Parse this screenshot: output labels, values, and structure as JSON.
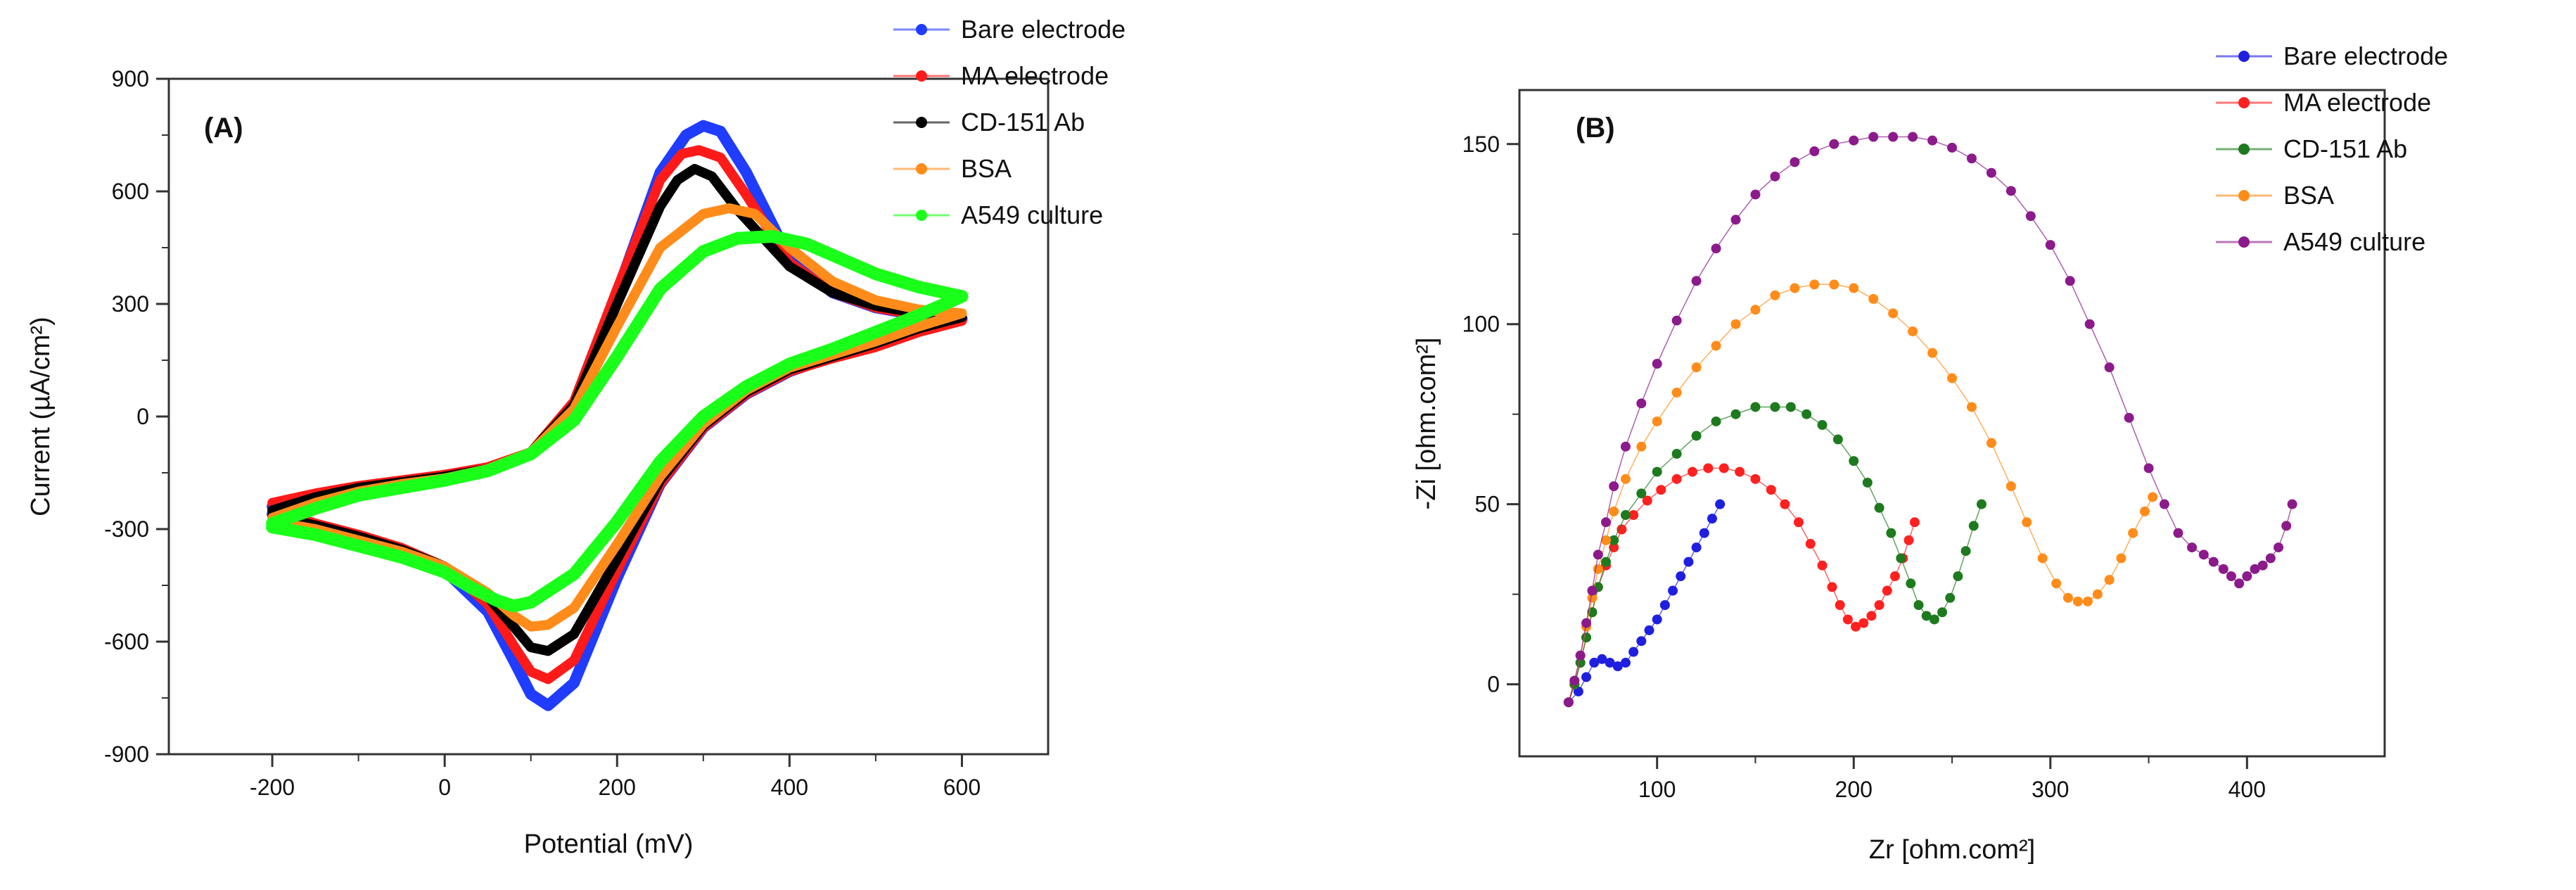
{
  "chart_data": [
    {
      "type": "line",
      "panel_label": "(A)",
      "title": "",
      "xlabel": "Potential (mV)",
      "ylabel": "Current (µA/cm²)",
      "xlim": [
        -320,
        700
      ],
      "ylim": [
        -900,
        900
      ],
      "xticks": [
        -200,
        0,
        200,
        400,
        600
      ],
      "yticks": [
        -900,
        -600,
        -300,
        0,
        300,
        600,
        900
      ],
      "xtick_labels": [
        "-200",
        "0",
        "200",
        "400",
        "600"
      ],
      "ytick_labels": [
        "-900",
        "-600",
        "-300",
        "0",
        "300",
        "600",
        "900"
      ],
      "grid": false,
      "legend_position": "top-right (outside)",
      "series": [
        {
          "name": "Bare electrode",
          "color": "#1f3cff",
          "line_width": 16,
          "x": [
            -200,
            -150,
            -100,
            -50,
            0,
            50,
            100,
            150,
            200,
            250,
            280,
            300,
            320,
            350,
            400,
            450,
            500,
            550,
            600,
            600,
            550,
            500,
            450,
            400,
            350,
            300,
            250,
            200,
            150,
            120,
            100,
            80,
            50,
            0,
            -50,
            -100,
            -150,
            -200
          ],
          "y": [
            -240,
            -210,
            -190,
            -175,
            -160,
            -140,
            -100,
            30,
            330,
            650,
            750,
            775,
            760,
            650,
            420,
            330,
            290,
            270,
            260,
            260,
            230,
            190,
            160,
            120,
            60,
            -30,
            -180,
            -430,
            -710,
            -770,
            -740,
            -650,
            -520,
            -410,
            -360,
            -320,
            -290,
            -260
          ]
        },
        {
          "name": "MA electrode",
          "color": "#ff1a1a",
          "line_width": 14,
          "x": [
            -200,
            -150,
            -100,
            -50,
            0,
            50,
            100,
            150,
            200,
            250,
            275,
            295,
            320,
            350,
            400,
            450,
            500,
            550,
            600,
            600,
            550,
            500,
            450,
            400,
            350,
            300,
            250,
            200,
            150,
            120,
            100,
            80,
            50,
            0,
            -50,
            -100,
            -150,
            -200
          ],
          "y": [
            -230,
            -205,
            -185,
            -170,
            -155,
            -135,
            -95,
            40,
            340,
            630,
            700,
            710,
            690,
            590,
            410,
            330,
            290,
            270,
            255,
            255,
            225,
            185,
            155,
            120,
            60,
            -30,
            -180,
            -410,
            -650,
            -700,
            -680,
            -610,
            -500,
            -400,
            -350,
            -315,
            -285,
            -250
          ]
        },
        {
          "name": "CD-151 Ab",
          "color": "#000000",
          "line_width": 14,
          "x": [
            -200,
            -150,
            -100,
            -50,
            0,
            50,
            100,
            150,
            200,
            250,
            270,
            290,
            310,
            340,
            400,
            450,
            500,
            550,
            600,
            600,
            550,
            500,
            450,
            400,
            350,
            300,
            250,
            200,
            150,
            120,
            100,
            80,
            50,
            0,
            -50,
            -100,
            -150,
            -200
          ],
          "y": [
            -250,
            -215,
            -190,
            -175,
            -160,
            -140,
            -95,
            30,
            300,
            560,
            630,
            660,
            640,
            550,
            400,
            330,
            295,
            275,
            265,
            265,
            235,
            195,
            160,
            125,
            65,
            -25,
            -170,
            -380,
            -580,
            -625,
            -615,
            -560,
            -480,
            -400,
            -355,
            -320,
            -290,
            -265
          ]
        },
        {
          "name": "BSA",
          "color": "#ff8c1a",
          "line_width": 14,
          "x": [
            -200,
            -150,
            -100,
            -50,
            0,
            50,
            100,
            150,
            200,
            250,
            300,
            330,
            360,
            400,
            450,
            500,
            550,
            600,
            600,
            550,
            500,
            450,
            400,
            350,
            300,
            250,
            200,
            150,
            120,
            100,
            80,
            50,
            0,
            -50,
            -100,
            -150,
            -200
          ],
          "y": [
            -270,
            -230,
            -200,
            -180,
            -165,
            -140,
            -95,
            20,
            240,
            450,
            540,
            555,
            540,
            450,
            360,
            310,
            285,
            275,
            275,
            240,
            200,
            165,
            130,
            70,
            -20,
            -160,
            -340,
            -510,
            -555,
            -560,
            -530,
            -470,
            -400,
            -360,
            -330,
            -300,
            -280
          ]
        },
        {
          "name": "A549 culture",
          "color": "#1aff1a",
          "line_width": 18,
          "x": [
            -200,
            -150,
            -100,
            -50,
            0,
            50,
            100,
            150,
            200,
            250,
            300,
            340,
            380,
            420,
            460,
            500,
            550,
            600,
            600,
            550,
            500,
            450,
            400,
            350,
            300,
            250,
            200,
            150,
            100,
            80,
            60,
            30,
            0,
            -50,
            -100,
            -150,
            -200
          ],
          "y": [
            -285,
            -245,
            -210,
            -190,
            -170,
            -145,
            -100,
            -10,
            160,
            340,
            440,
            475,
            480,
            460,
            420,
            380,
            345,
            320,
            320,
            270,
            225,
            180,
            140,
            80,
            0,
            -120,
            -280,
            -420,
            -495,
            -505,
            -490,
            -455,
            -415,
            -375,
            -345,
            -315,
            -295
          ]
        }
      ]
    },
    {
      "type": "scatter",
      "panel_label": "(B)",
      "title": "",
      "xlabel": "Zr [ohm.com²]",
      "ylabel": "-Zi [ohm.com²]",
      "xlim": [
        30,
        470
      ],
      "ylim": [
        -20,
        165
      ],
      "xticks": [
        100,
        200,
        300,
        400
      ],
      "yticks": [
        0,
        50,
        100,
        150
      ],
      "xtick_labels": [
        "100",
        "200",
        "300",
        "400"
      ],
      "ytick_labels": [
        "0",
        "50",
        "100",
        "150"
      ],
      "grid": false,
      "legend_position": "top-right (outside)",
      "series": [
        {
          "name": "Bare electrode",
          "color": "#1f1fe0",
          "x": [
            55,
            60,
            64,
            68,
            72,
            76,
            80,
            84,
            88,
            92,
            96,
            100,
            104,
            108,
            112,
            116,
            120,
            124,
            128,
            132
          ],
          "y": [
            -5,
            -2,
            2,
            6,
            7,
            6,
            5,
            6,
            9,
            12,
            15,
            18,
            22,
            26,
            30,
            34,
            38,
            42,
            46,
            50
          ]
        },
        {
          "name": "MA electrode",
          "color": "#ff2020",
          "x": [
            55,
            58,
            61,
            64,
            67,
            70,
            74,
            78,
            82,
            88,
            95,
            102,
            110,
            118,
            126,
            134,
            142,
            150,
            158,
            165,
            172,
            178,
            184,
            189,
            193,
            197,
            201,
            205,
            209,
            213,
            217,
            221,
            225,
            228,
            231
          ],
          "y": [
            -5,
            0,
            6,
            13,
            20,
            27,
            33,
            38,
            43,
            47,
            51,
            54,
            57,
            59,
            60,
            60,
            59,
            57,
            54,
            50,
            45,
            39,
            33,
            27,
            22,
            18,
            16,
            17,
            19,
            22,
            26,
            30,
            35,
            40,
            45
          ]
        },
        {
          "name": "CD-151 Ab",
          "color": "#1e7a1e",
          "x": [
            55,
            58,
            61,
            64,
            67,
            70,
            74,
            78,
            84,
            92,
            100,
            110,
            120,
            130,
            140,
            150,
            160,
            168,
            176,
            184,
            192,
            200,
            207,
            213,
            219,
            224,
            229,
            233,
            237,
            241,
            245,
            249,
            253,
            257,
            261,
            265
          ],
          "y": [
            -5,
            0,
            6,
            13,
            20,
            27,
            34,
            40,
            47,
            53,
            59,
            64,
            69,
            73,
            75,
            77,
            77,
            77,
            75,
            72,
            68,
            62,
            56,
            49,
            42,
            35,
            28,
            22,
            19,
            18,
            20,
            24,
            30,
            37,
            44,
            50
          ]
        },
        {
          "name": "BSA",
          "color": "#ff8c1a",
          "x": [
            55,
            58,
            61,
            64,
            67,
            70,
            74,
            78,
            84,
            92,
            100,
            110,
            120,
            130,
            140,
            150,
            160,
            170,
            180,
            190,
            200,
            210,
            220,
            230,
            240,
            250,
            260,
            270,
            280,
            288,
            296,
            303,
            309,
            314,
            319,
            324,
            330,
            336,
            342,
            348,
            352
          ],
          "y": [
            -5,
            1,
            8,
            16,
            24,
            32,
            40,
            48,
            57,
            66,
            73,
            81,
            88,
            94,
            100,
            104,
            108,
            110,
            111,
            111,
            110,
            107,
            103,
            98,
            92,
            85,
            77,
            67,
            55,
            45,
            35,
            28,
            24,
            23,
            23,
            25,
            29,
            35,
            42,
            48,
            52
          ]
        },
        {
          "name": "A549 culture",
          "color": "#8b1a8b",
          "x": [
            55,
            58,
            61,
            64,
            67,
            70,
            74,
            78,
            84,
            92,
            100,
            110,
            120,
            130,
            140,
            150,
            160,
            170,
            180,
            190,
            200,
            210,
            220,
            230,
            240,
            250,
            260,
            270,
            280,
            290,
            300,
            310,
            320,
            330,
            340,
            350,
            358,
            365,
            372,
            378,
            383,
            388,
            392,
            396,
            400,
            404,
            408,
            412,
            416,
            420,
            423
          ],
          "y": [
            -5,
            1,
            8,
            17,
            26,
            36,
            45,
            55,
            66,
            78,
            89,
            101,
            112,
            121,
            129,
            136,
            141,
            145,
            148,
            150,
            151,
            152,
            152,
            152,
            151,
            149,
            146,
            142,
            137,
            130,
            122,
            112,
            100,
            88,
            74,
            60,
            50,
            42,
            38,
            36,
            34,
            32,
            30,
            28,
            30,
            32,
            33,
            35,
            38,
            44,
            50
          ]
        }
      ]
    }
  ]
}
